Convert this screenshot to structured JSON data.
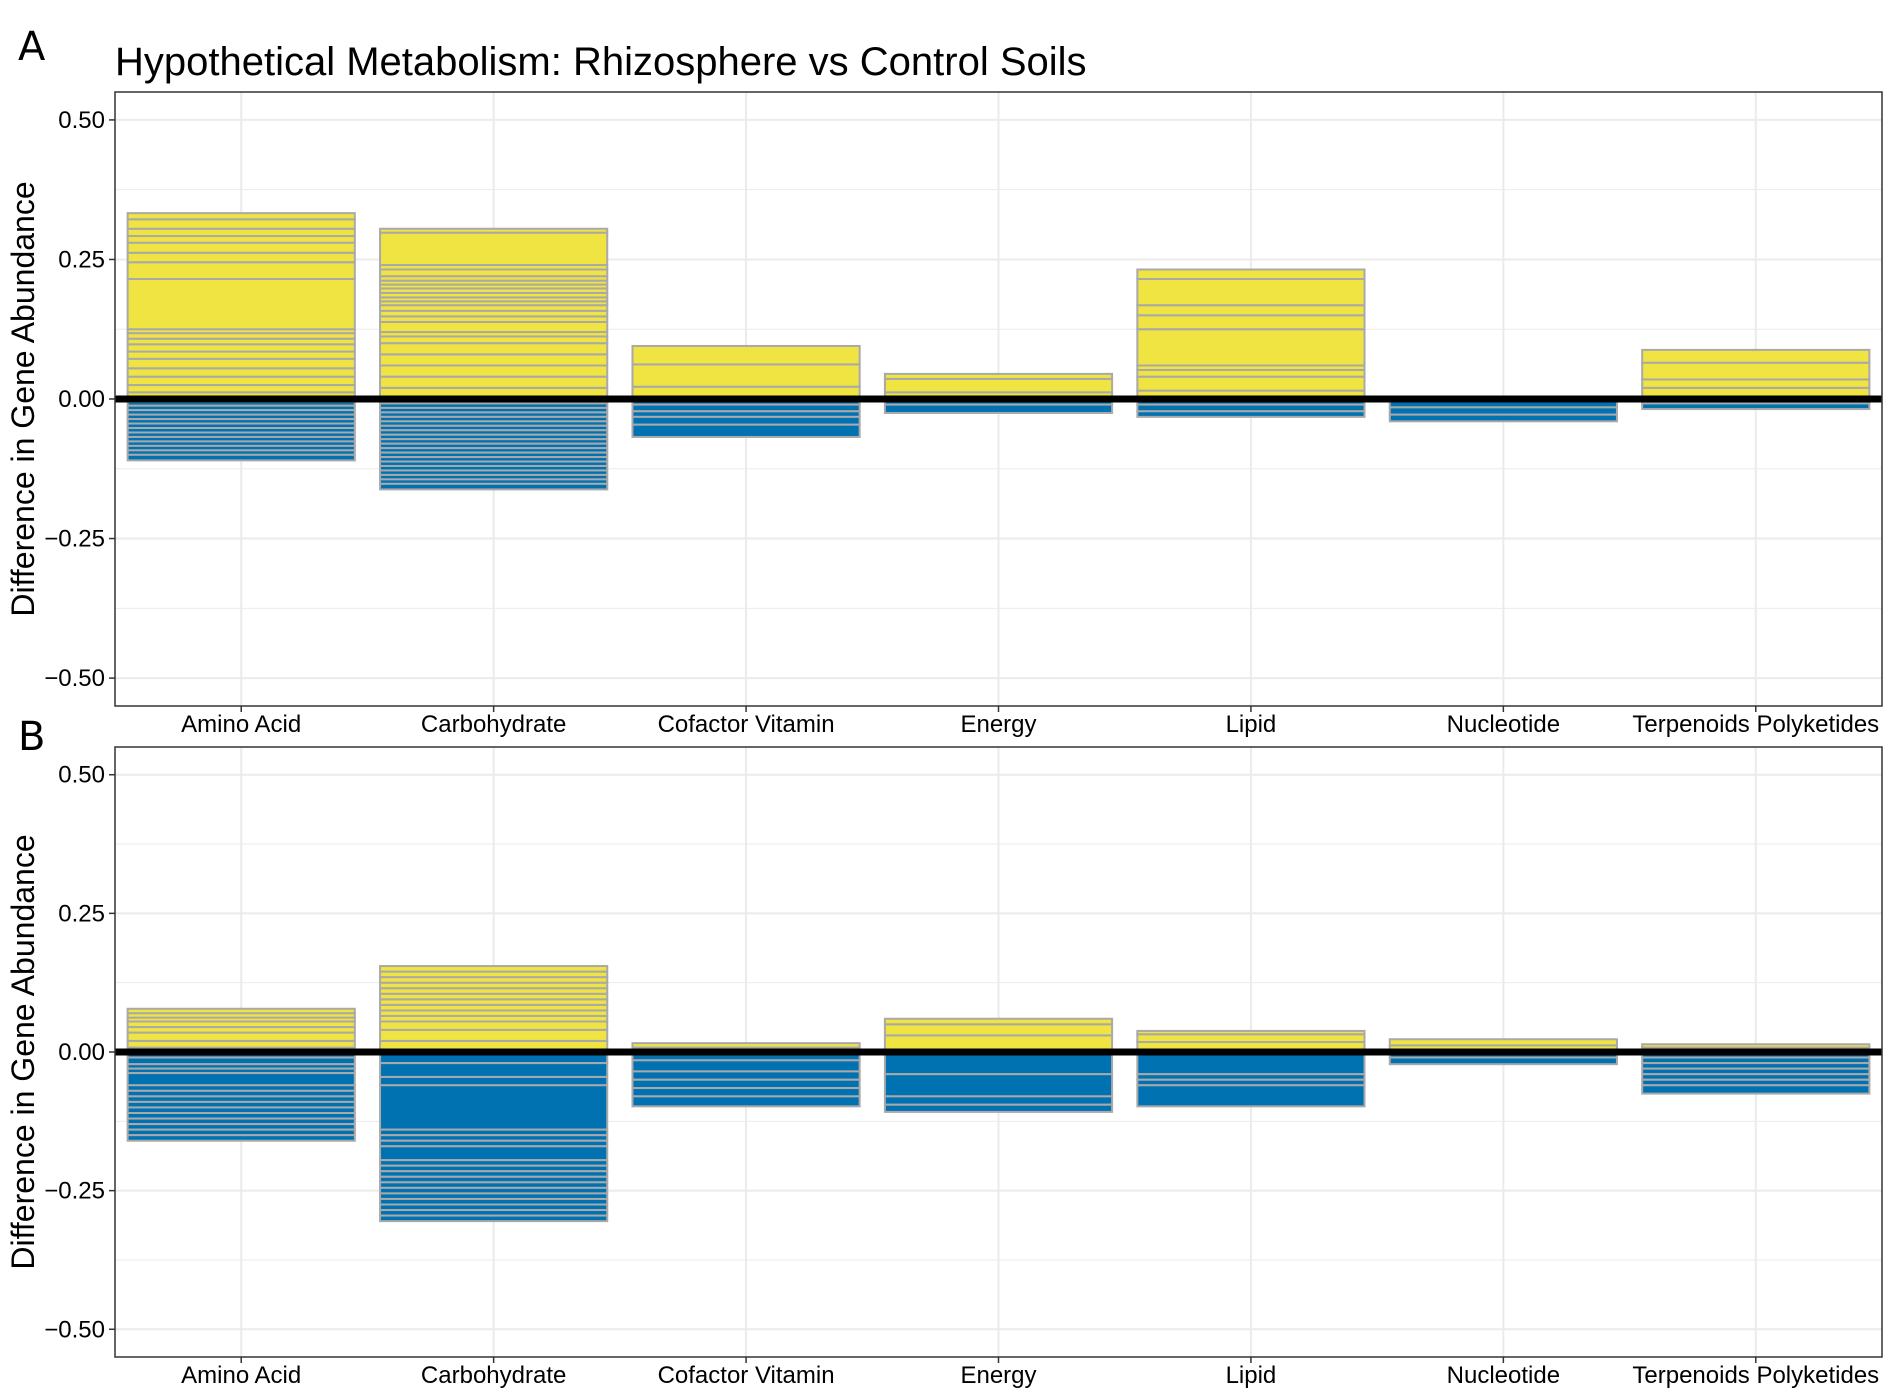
{
  "figure": {
    "title": "Hypothetical Metabolism: Rhizosphere vs Control Soils",
    "ylabel": "Difference in Gene Abundance",
    "colors": {
      "increase": "#f0e442",
      "decrease": "#0072b2",
      "segment_border": "#a9a9a9",
      "zero_line": "#000000",
      "grid": "#ebebeb",
      "panel_border": "#333333"
    }
  },
  "chart_data": [
    {
      "panel": "A",
      "type": "bar",
      "stacked": true,
      "title": "Hypothetical Metabolism: Rhizosphere vs Control Soils",
      "xlabel": "",
      "ylabel": "Difference in Gene Abundance",
      "ylim": [
        -0.55,
        0.55
      ],
      "yticks": [
        0.5,
        0.25,
        0.0,
        -0.25,
        -0.5
      ],
      "ytick_labels": [
        "0.50",
        "0.25",
        "0.00",
        "−0.25",
        "−0.50"
      ],
      "grid": true,
      "categories": [
        "Amino Acid",
        "Carbohydrate",
        "Cofactor Vitamin",
        "Energy",
        "Lipid",
        "Nucleotide",
        "Terpenoids Polyketides"
      ],
      "positive_totals": [
        0.333,
        0.305,
        0.095,
        0.045,
        0.232,
        0.0,
        0.088
      ],
      "negative_totals": [
        -0.11,
        -0.162,
        -0.068,
        -0.025,
        -0.032,
        -0.04,
        -0.018
      ],
      "segments": [
        {
          "pos": [
            0.333,
            0.322,
            0.305,
            0.292,
            0.28,
            0.262,
            0.245,
            0.215,
            0.125,
            0.118,
            0.108,
            0.098,
            0.085,
            0.072,
            0.055,
            0.04,
            0.025,
            0.012
          ],
          "neg": [
            -0.005,
            -0.012,
            -0.02,
            -0.028,
            -0.036,
            -0.044,
            -0.052,
            -0.06,
            -0.068,
            -0.076,
            -0.084,
            -0.092,
            -0.1,
            -0.11
          ]
        },
        {
          "pos": [
            0.305,
            0.298,
            0.24,
            0.232,
            0.22,
            0.212,
            0.205,
            0.198,
            0.19,
            0.182,
            0.175,
            0.168,
            0.158,
            0.148,
            0.138,
            0.12,
            0.112,
            0.1,
            0.08,
            0.06,
            0.04,
            0.02
          ],
          "neg": [
            -0.008,
            -0.016,
            -0.024,
            -0.032,
            -0.04,
            -0.048,
            -0.056,
            -0.064,
            -0.072,
            -0.08,
            -0.088,
            -0.096,
            -0.104,
            -0.112,
            -0.12,
            -0.128,
            -0.136,
            -0.144,
            -0.152,
            -0.162
          ]
        },
        {
          "pos": [
            0.095,
            0.062,
            0.022
          ],
          "neg": [
            -0.01,
            -0.022,
            -0.032,
            -0.046,
            -0.068
          ]
        },
        {
          "pos": [
            0.045,
            0.036,
            0.012
          ],
          "neg": [
            -0.01,
            -0.025
          ]
        },
        {
          "pos": [
            0.232,
            0.215,
            0.168,
            0.15,
            0.125,
            0.06,
            0.052,
            0.04,
            0.015
          ],
          "neg": [
            -0.01,
            -0.022,
            -0.032
          ]
        },
        {
          "pos": [],
          "neg": [
            -0.015,
            -0.028,
            -0.04
          ]
        },
        {
          "pos": [
            0.088,
            0.065,
            0.035,
            0.02
          ],
          "neg": [
            -0.008,
            -0.018
          ]
        }
      ]
    },
    {
      "panel": "B",
      "type": "bar",
      "stacked": true,
      "title": "",
      "xlabel": "",
      "ylabel": "Difference in Gene Abundance",
      "ylim": [
        -0.55,
        0.55
      ],
      "yticks": [
        0.5,
        0.25,
        0.0,
        -0.25,
        -0.5
      ],
      "ytick_labels": [
        "0.50",
        "0.25",
        "0.00",
        "−0.25",
        "−0.50"
      ],
      "grid": true,
      "categories": [
        "Amino Acid",
        "Carbohydrate",
        "Cofactor Vitamin",
        "Energy",
        "Lipid",
        "Nucleotide",
        "Terpenoids Polyketides"
      ],
      "positive_totals": [
        0.078,
        0.155,
        0.016,
        0.06,
        0.038,
        0.023,
        0.014
      ],
      "negative_totals": [
        -0.16,
        -0.305,
        -0.098,
        -0.108,
        -0.098,
        -0.022,
        -0.075
      ],
      "segments": [
        {
          "pos": [
            0.078,
            0.07,
            0.062,
            0.055,
            0.045,
            0.035,
            0.02,
            0.008
          ],
          "neg": [
            -0.01,
            -0.022,
            -0.03,
            -0.038,
            -0.06,
            -0.07,
            -0.08,
            -0.09,
            -0.1,
            -0.11,
            -0.12,
            -0.13,
            -0.14,
            -0.15,
            -0.16
          ]
        },
        {
          "pos": [
            0.155,
            0.145,
            0.135,
            0.125,
            0.115,
            0.105,
            0.095,
            0.085,
            0.075,
            0.065,
            0.055,
            0.04,
            0.02
          ],
          "neg": [
            -0.02,
            -0.045,
            -0.06,
            -0.14,
            -0.15,
            -0.16,
            -0.17,
            -0.195,
            -0.205,
            -0.215,
            -0.225,
            -0.235,
            -0.245,
            -0.255,
            -0.265,
            -0.275,
            -0.285,
            -0.295,
            -0.305
          ]
        },
        {
          "pos": [
            0.016,
            0.008
          ],
          "neg": [
            -0.015,
            -0.035,
            -0.05,
            -0.065,
            -0.08,
            -0.098
          ]
        },
        {
          "pos": [
            0.06,
            0.05,
            0.03
          ],
          "neg": [
            -0.04,
            -0.08,
            -0.095,
            -0.108
          ]
        },
        {
          "pos": [
            0.038,
            0.032,
            0.018
          ],
          "neg": [
            -0.04,
            -0.05,
            -0.06,
            -0.098
          ]
        },
        {
          "pos": [
            0.023,
            0.012
          ],
          "neg": [
            -0.01,
            -0.022
          ]
        },
        {
          "pos": [
            0.014,
            0.008
          ],
          "neg": [
            -0.01,
            -0.02,
            -0.03,
            -0.04,
            -0.05,
            -0.06,
            -0.075
          ]
        }
      ]
    }
  ]
}
